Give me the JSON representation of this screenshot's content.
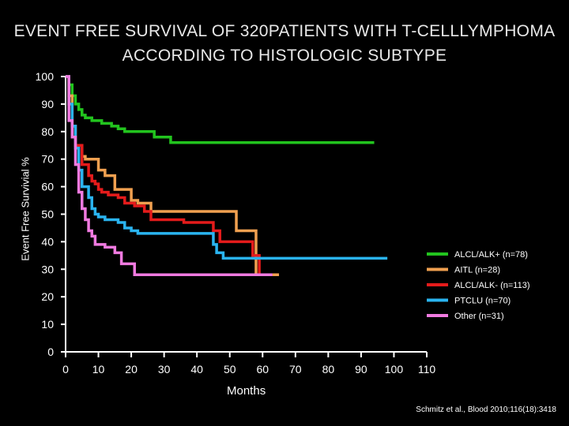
{
  "title": {
    "line1": "EVENT FREE SURVIVAL OF 320PATIENTS WITH T-CELLLYMPHOMA",
    "line2": "ACCORDING TO HISTOLOGIC SUBTYPE"
  },
  "citation": "Schmitz et al., Blood 2010;116(18):3418",
  "chart_data": {
    "type": "line",
    "step": true,
    "xlabel": "Months",
    "ylabel": "Event Free Survivial %",
    "xlim": [
      0,
      110
    ],
    "ylim": [
      0,
      100
    ],
    "xticks": [
      "0",
      "10",
      "20",
      "30",
      "40",
      "50",
      "60",
      "70",
      "80",
      "90",
      "100",
      "110"
    ],
    "yticks": [
      "0",
      "10",
      "20",
      "30",
      "40",
      "50",
      "60",
      "70",
      "80",
      "90",
      "100"
    ],
    "grid": false,
    "legend_position": "right",
    "series": [
      {
        "name": "ALCL/ALK+ (n=78)",
        "color": "#22c41e",
        "points": [
          [
            0,
            100
          ],
          [
            1,
            97
          ],
          [
            2,
            93
          ],
          [
            3,
            90
          ],
          [
            4,
            88
          ],
          [
            5,
            86
          ],
          [
            6,
            85
          ],
          [
            8,
            84
          ],
          [
            11,
            83
          ],
          [
            14,
            82
          ],
          [
            16,
            81
          ],
          [
            18,
            80
          ],
          [
            27,
            78
          ],
          [
            32,
            76
          ],
          [
            47,
            76
          ],
          [
            60,
            76
          ],
          [
            75,
            76
          ],
          [
            94,
            76
          ]
        ]
      },
      {
        "name": "AITL (n=28)",
        "color": "#f0a050",
        "points": [
          [
            0,
            100
          ],
          [
            1,
            93
          ],
          [
            2,
            82
          ],
          [
            3,
            75
          ],
          [
            5,
            71
          ],
          [
            6,
            70
          ],
          [
            10,
            66
          ],
          [
            12,
            64
          ],
          [
            15,
            59
          ],
          [
            20,
            55
          ],
          [
            22,
            54
          ],
          [
            26,
            51
          ],
          [
            40,
            51
          ],
          [
            50,
            51
          ],
          [
            52,
            44
          ],
          [
            57,
            44
          ],
          [
            58,
            28
          ],
          [
            63,
            28
          ],
          [
            65,
            28
          ]
        ]
      },
      {
        "name": "ALCL/ALK- (n=113)",
        "color": "#e41b1b",
        "points": [
          [
            0,
            100
          ],
          [
            1,
            90
          ],
          [
            2,
            82
          ],
          [
            3,
            75
          ],
          [
            5,
            68
          ],
          [
            7,
            64
          ],
          [
            8,
            62
          ],
          [
            9,
            61
          ],
          [
            10,
            59
          ],
          [
            11,
            58
          ],
          [
            13,
            57
          ],
          [
            16,
            56
          ],
          [
            18,
            54
          ],
          [
            21,
            53
          ],
          [
            24,
            51
          ],
          [
            26,
            48
          ],
          [
            30,
            48
          ],
          [
            36,
            47
          ],
          [
            43,
            47
          ],
          [
            45,
            44
          ],
          [
            46,
            44
          ],
          [
            47,
            40
          ],
          [
            56,
            40
          ],
          [
            57,
            35
          ],
          [
            59,
            35
          ],
          [
            59,
            28
          ],
          [
            63,
            28
          ]
        ]
      },
      {
        "name": "PTCLU (n=70)",
        "color": "#2ab4f0",
        "points": [
          [
            0,
            100
          ],
          [
            1,
            90
          ],
          [
            2,
            82
          ],
          [
            3,
            74
          ],
          [
            4,
            66
          ],
          [
            5,
            60
          ],
          [
            7,
            56
          ],
          [
            8,
            52
          ],
          [
            9,
            50
          ],
          [
            10,
            49
          ],
          [
            12,
            48
          ],
          [
            16,
            47
          ],
          [
            18,
            45
          ],
          [
            20,
            44
          ],
          [
            22,
            43
          ],
          [
            27,
            43
          ],
          [
            40,
            43
          ],
          [
            45,
            39
          ],
          [
            46,
            36
          ],
          [
            48,
            34
          ],
          [
            60,
            34
          ],
          [
            80,
            34
          ],
          [
            91,
            34
          ],
          [
            98,
            34
          ]
        ]
      },
      {
        "name": "Other (n=31)",
        "color": "#f07ae0",
        "points": [
          [
            0,
            100
          ],
          [
            1,
            84
          ],
          [
            2,
            78
          ],
          [
            3,
            68
          ],
          [
            4,
            58
          ],
          [
            5,
            52
          ],
          [
            6,
            48
          ],
          [
            7,
            44
          ],
          [
            8,
            42
          ],
          [
            9,
            39
          ],
          [
            12,
            38
          ],
          [
            15,
            36
          ],
          [
            17,
            32
          ],
          [
            21,
            28
          ],
          [
            30,
            28
          ],
          [
            45,
            28
          ],
          [
            58,
            28
          ],
          [
            63,
            28
          ]
        ]
      }
    ]
  }
}
